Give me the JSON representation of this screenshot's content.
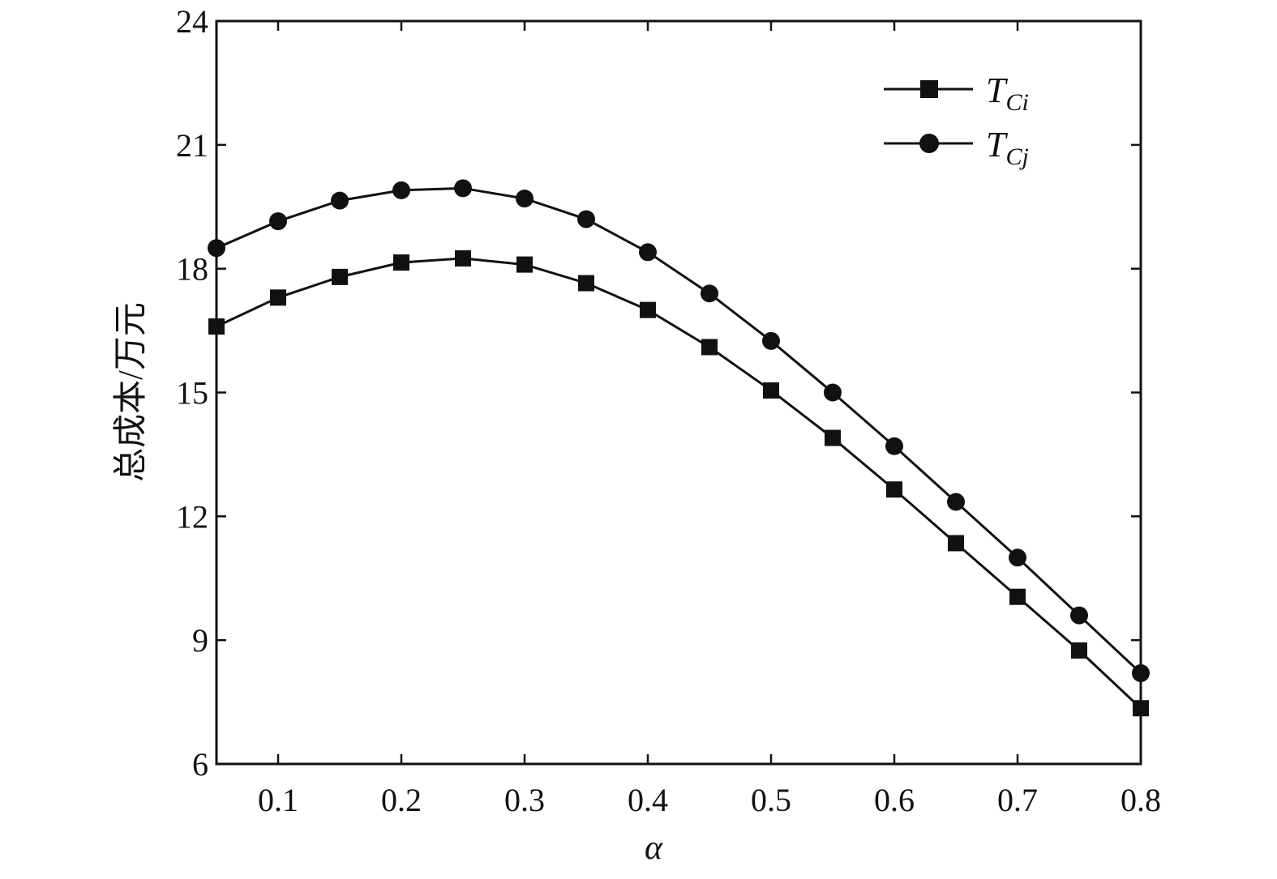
{
  "chart_data": {
    "type": "line",
    "title": "",
    "xlabel": "α",
    "ylabel": "总成本/万元",
    "xlim": [
      0.05,
      0.8
    ],
    "ylim": [
      6,
      24
    ],
    "xticks": [
      "0.1",
      "0.2",
      "0.3",
      "0.4",
      "0.5",
      "0.6",
      "0.7",
      "0.8"
    ],
    "yticks": [
      "6",
      "9",
      "12",
      "15",
      "18",
      "21",
      "24"
    ],
    "grid": false,
    "legend_position": "top-right",
    "x": [
      0.05,
      0.1,
      0.15,
      0.2,
      0.25,
      0.3,
      0.35,
      0.4,
      0.45,
      0.5,
      0.55,
      0.6,
      0.65,
      0.7,
      0.75,
      0.8
    ],
    "series": [
      {
        "name": "T_Ci",
        "label_main": "T",
        "label_sub": "C",
        "label_sub_italic": "i",
        "marker": "square",
        "values": [
          16.6,
          17.3,
          17.8,
          18.15,
          18.25,
          18.1,
          17.65,
          17.0,
          16.1,
          15.05,
          13.9,
          12.65,
          11.35,
          10.05,
          8.75,
          7.35
        ]
      },
      {
        "name": "T_Cj",
        "label_main": "T",
        "label_sub": "C",
        "label_sub_italic": "j",
        "marker": "circle",
        "values": [
          18.5,
          19.15,
          19.65,
          19.9,
          19.95,
          19.7,
          19.2,
          18.4,
          17.4,
          16.25,
          15.0,
          13.7,
          12.35,
          11.0,
          9.6,
          8.2
        ]
      }
    ],
    "colors": {
      "line": "#111111",
      "marker": "#111111"
    }
  }
}
